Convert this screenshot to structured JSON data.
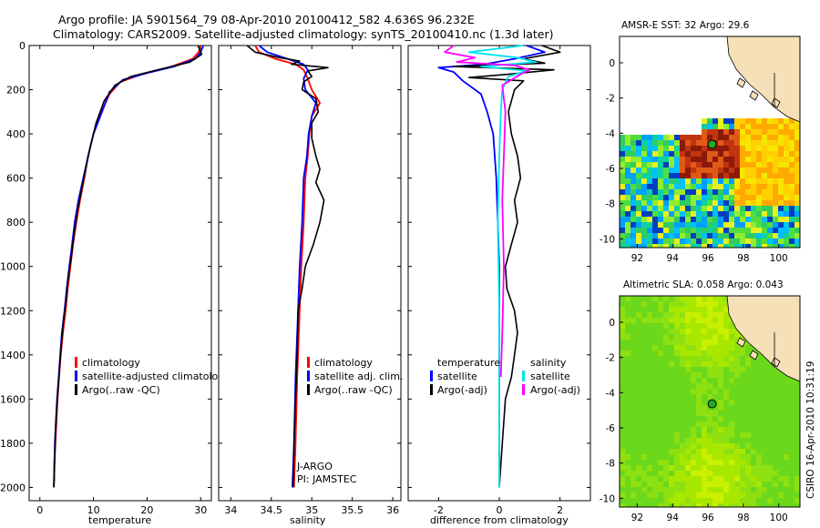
{
  "title_line1": "Argo profile: JA 5901564_79 08-Apr-2010 20100412_582 4.636S 96.232E",
  "title_line2": "Climatology: CARS2009. Satellite-adjusted climatology: synTS_20100410.nc (1.3d later)",
  "depth_ticks": [
    "0",
    "200",
    "400",
    "600",
    "800",
    "1000",
    "1200",
    "1400",
    "1600",
    "1800",
    "2000"
  ],
  "chart_data": [
    {
      "type": "line",
      "name": "temperature-profile",
      "xlabel": "temperature",
      "xlim": [
        -2,
        32
      ],
      "ylim": [
        2060,
        0
      ],
      "xticks": [
        "0",
        "10",
        "20",
        "30"
      ],
      "legend": [
        "climatology",
        "satellite-adjusted climatology",
        "Argo(..raw -QC)"
      ],
      "series": [
        {
          "name": "climatology",
          "color": "#ff0000",
          "points": [
            [
              30.0,
              0
            ],
            [
              29.6,
              30
            ],
            [
              28.5,
              60
            ],
            [
              24,
              100
            ],
            [
              19,
              130
            ],
            [
              15,
              165
            ],
            [
              13,
              220
            ],
            [
              11.5,
              300
            ],
            [
              10,
              400
            ],
            [
              9,
              500
            ],
            [
              8.3,
              600
            ],
            [
              7.5,
              700
            ],
            [
              6.8,
              800
            ],
            [
              6.2,
              900
            ],
            [
              5.7,
              1000
            ],
            [
              5.2,
              1100
            ],
            [
              4.8,
              1200
            ],
            [
              4.3,
              1300
            ],
            [
              3.9,
              1400
            ],
            [
              3.6,
              1500
            ],
            [
              3.3,
              1600
            ],
            [
              3.1,
              1700
            ],
            [
              2.9,
              1800
            ],
            [
              2.7,
              1900
            ],
            [
              2.6,
              2000
            ]
          ]
        },
        {
          "name": "satellite-adjusted",
          "color": "#0000ff",
          "points": [
            [
              30.5,
              0
            ],
            [
              30,
              30
            ],
            [
              29,
              60
            ],
            [
              25,
              95
            ],
            [
              20,
              125
            ],
            [
              15.5,
              155
            ],
            [
              13,
              210
            ],
            [
              11.6,
              300
            ],
            [
              10,
              400
            ],
            [
              9,
              500
            ],
            [
              8.1,
              600
            ],
            [
              7.2,
              700
            ],
            [
              6.5,
              800
            ],
            [
              6.0,
              900
            ],
            [
              5.5,
              1000
            ],
            [
              5.0,
              1100
            ],
            [
              4.6,
              1200
            ],
            [
              4.1,
              1300
            ],
            [
              3.8,
              1400
            ],
            [
              3.5,
              1500
            ],
            [
              3.2,
              1600
            ],
            [
              3.0,
              1700
            ],
            [
              2.8,
              1800
            ],
            [
              2.7,
              1900
            ],
            [
              2.6,
              2000
            ]
          ]
        },
        {
          "name": "argo",
          "color": "#000000",
          "points": [
            [
              29.5,
              0
            ],
            [
              30.2,
              40
            ],
            [
              28,
              75
            ],
            [
              22,
              110
            ],
            [
              17,
              140
            ],
            [
              14,
              180
            ],
            [
              12,
              250
            ],
            [
              10.5,
              350
            ],
            [
              9.5,
              450
            ],
            [
              8.6,
              550
            ],
            [
              7.8,
              650
            ],
            [
              7.0,
              750
            ],
            [
              6.4,
              850
            ],
            [
              5.9,
              950
            ],
            [
              5.3,
              1050
            ],
            [
              4.9,
              1150
            ],
            [
              4.4,
              1250
            ],
            [
              4.0,
              1350
            ],
            [
              3.7,
              1450
            ],
            [
              3.4,
              1550
            ],
            [
              3.1,
              1650
            ],
            [
              2.9,
              1750
            ],
            [
              2.8,
              1850
            ],
            [
              2.7,
              1950
            ],
            [
              2.6,
              2000
            ]
          ]
        }
      ]
    },
    {
      "type": "line",
      "name": "salinity-profile",
      "xlabel": "salinity",
      "xlim": [
        33.85,
        36.1
      ],
      "ylim": [
        2060,
        0
      ],
      "xticks": [
        "34",
        "34.5",
        "35",
        "35.5",
        "36"
      ],
      "legend": [
        "climatology",
        "satellite adj. clim.",
        "Argo(..raw -QC)"
      ],
      "annotation": [
        "J-ARGO",
        "PI: JAMSTEC"
      ],
      "series": [
        {
          "name": "climatology",
          "color": "#ff0000",
          "points": [
            [
              34.3,
              0
            ],
            [
              34.35,
              30
            ],
            [
              34.55,
              60
            ],
            [
              34.8,
              85
            ],
            [
              34.9,
              110
            ],
            [
              34.95,
              150
            ],
            [
              35.0,
              200
            ],
            [
              35.1,
              260
            ],
            [
              35.0,
              320
            ],
            [
              34.97,
              400
            ],
            [
              34.95,
              500
            ],
            [
              34.92,
              600
            ],
            [
              34.9,
              800
            ],
            [
              34.87,
              1000
            ],
            [
              34.85,
              1200
            ],
            [
              34.82,
              1500
            ],
            [
              34.8,
              1800
            ],
            [
              34.78,
              2000
            ]
          ]
        },
        {
          "name": "satellite-adjusted",
          "color": "#0000ff",
          "points": [
            [
              34.35,
              0
            ],
            [
              34.45,
              30
            ],
            [
              34.7,
              60
            ],
            [
              34.9,
              85
            ],
            [
              34.95,
              110
            ],
            [
              34.9,
              150
            ],
            [
              34.92,
              200
            ],
            [
              35.05,
              260
            ],
            [
              35.0,
              320
            ],
            [
              34.96,
              400
            ],
            [
              34.94,
              500
            ],
            [
              34.9,
              600
            ],
            [
              34.88,
              800
            ],
            [
              34.85,
              1000
            ],
            [
              34.83,
              1200
            ],
            [
              34.8,
              1500
            ],
            [
              34.78,
              1800
            ],
            [
              34.76,
              2000
            ]
          ]
        },
        {
          "name": "argo",
          "color": "#000000",
          "points": [
            [
              34.2,
              0
            ],
            [
              34.3,
              30
            ],
            [
              34.6,
              55
            ],
            [
              34.85,
              70
            ],
            [
              34.75,
              85
            ],
            [
              35.2,
              100
            ],
            [
              34.95,
              115
            ],
            [
              35.0,
              140
            ],
            [
              34.9,
              165
            ],
            [
              34.88,
              200
            ],
            [
              35.05,
              240
            ],
            [
              35.08,
              300
            ],
            [
              35.0,
              350
            ],
            [
              35.0,
              420
            ],
            [
              35.05,
              500
            ],
            [
              35.1,
              560
            ],
            [
              35.05,
              620
            ],
            [
              35.15,
              700
            ],
            [
              35.1,
              800
            ],
            [
              35.02,
              900
            ],
            [
              34.92,
              1000
            ],
            [
              34.88,
              1100
            ],
            [
              34.83,
              1200
            ],
            [
              34.82,
              1400
            ],
            [
              34.8,
              1600
            ],
            [
              34.78,
              1800
            ],
            [
              34.77,
              2000
            ]
          ]
        }
      ]
    },
    {
      "type": "line",
      "name": "difference-from-climatology",
      "xlabel": "difference from climatology",
      "xlim": [
        -3.0,
        3.0
      ],
      "ylim": [
        2060,
        0
      ],
      "xticks": [
        "-2",
        "0",
        "2"
      ],
      "legend_temperature": [
        "temperature",
        "satellite",
        "Argo(-adj)"
      ],
      "legend_salinity": [
        "salinity",
        "satellite",
        "Argo(-adj)"
      ],
      "series": [
        {
          "name": "temperature-satellite",
          "color": "#0000ff",
          "points": [
            [
              0.9,
              0
            ],
            [
              1.5,
              30
            ],
            [
              0.5,
              60
            ],
            [
              -0.5,
              85
            ],
            [
              -2.0,
              100
            ],
            [
              -1.5,
              120
            ],
            [
              -1.2,
              160
            ],
            [
              -0.6,
              220
            ],
            [
              -0.4,
              300
            ],
            [
              -0.2,
              400
            ],
            [
              -0.1,
              600
            ],
            [
              0.0,
              1000
            ],
            [
              0.0,
              2000
            ]
          ]
        },
        {
          "name": "temperature-argo",
          "color": "#000000",
          "points": [
            [
              1.4,
              0
            ],
            [
              2.0,
              30
            ],
            [
              0.8,
              60
            ],
            [
              1.5,
              80
            ],
            [
              -1.5,
              95
            ],
            [
              1.8,
              110
            ],
            [
              0.3,
              130
            ],
            [
              -1.0,
              145
            ],
            [
              0.8,
              160
            ],
            [
              0.5,
              200
            ],
            [
              0.3,
              300
            ],
            [
              0.4,
              400
            ],
            [
              0.6,
              500
            ],
            [
              0.7,
              600
            ],
            [
              0.5,
              700
            ],
            [
              0.6,
              800
            ],
            [
              0.4,
              900
            ],
            [
              0.2,
              1000
            ],
            [
              0.25,
              1100
            ],
            [
              0.5,
              1200
            ],
            [
              0.6,
              1300
            ],
            [
              0.5,
              1400
            ],
            [
              0.4,
              1500
            ],
            [
              0.2,
              1600
            ],
            [
              0.1,
              1800
            ],
            [
              0.0,
              2000
            ]
          ]
        },
        {
          "name": "salinity-satellite",
          "color": "#00e5ee",
          "points": [
            [
              0.8,
              0
            ],
            [
              -1.0,
              30
            ],
            [
              0.6,
              55
            ],
            [
              1.2,
              75
            ],
            [
              -0.6,
              95
            ],
            [
              0.9,
              115
            ],
            [
              0.3,
              140
            ],
            [
              0.1,
              200
            ],
            [
              0.05,
              300
            ],
            [
              0.0,
              500
            ],
            [
              -0.05,
              800
            ],
            [
              0.0,
              1200
            ],
            [
              0.0,
              2000
            ]
          ]
        },
        {
          "name": "salinity-argo",
          "color": "#ff00ff",
          "points": [
            [
              -1.5,
              0
            ],
            [
              -1.8,
              30
            ],
            [
              -0.8,
              55
            ],
            [
              -1.4,
              75
            ],
            [
              0.5,
              90
            ],
            [
              1.0,
              110
            ],
            [
              0.7,
              130
            ],
            [
              0.1,
              180
            ],
            [
              0.2,
              300
            ],
            [
              0.15,
              500
            ],
            [
              0.1,
              700
            ],
            [
              0.15,
              1000
            ],
            [
              0.1,
              1300
            ],
            [
              0.05,
              1500
            ]
          ]
        }
      ]
    },
    {
      "type": "heatmap",
      "name": "amsr-e-sst-map",
      "title": "AMSR-E SST: 32 Argo: 29.6",
      "xticks": [
        "92",
        "94",
        "96",
        "98",
        "100"
      ],
      "yticks": [
        "0",
        "-2",
        "-4",
        "-6",
        "-8",
        "-10"
      ],
      "xlim": [
        91,
        101.2
      ],
      "ylim": [
        -10.5,
        1.5
      ],
      "marker": {
        "lon": 96.232,
        "lat": -4.636
      }
    },
    {
      "type": "heatmap",
      "name": "altimetric-sla-map",
      "title": "Altimetric SLA: 0.058 Argo: 0.043",
      "xticks": [
        "92",
        "94",
        "96",
        "98",
        "100"
      ],
      "yticks": [
        "0",
        "-2",
        "-4",
        "-6",
        "-8",
        "-10"
      ],
      "xlim": [
        91,
        101.2
      ],
      "ylim": [
        -10.5,
        1.5
      ],
      "marker": {
        "lon": 96.232,
        "lat": -4.636
      }
    }
  ],
  "side_stamp": "CSIRO 16-Apr-2010 10:31:19"
}
